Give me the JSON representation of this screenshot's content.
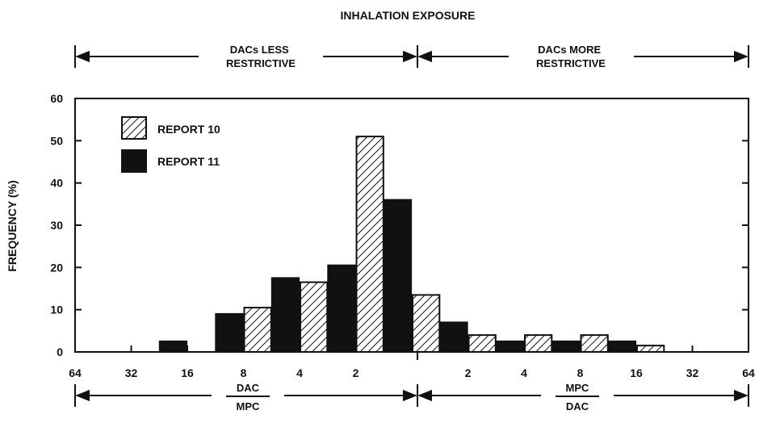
{
  "chart_data": {
    "type": "bar",
    "title": "INHALATION EXPOSURE",
    "ylabel": "FREQUENCY (%)",
    "xlabel": "",
    "ylim": [
      0,
      60
    ],
    "yticks": [
      0,
      10,
      20,
      30,
      40,
      50,
      60
    ],
    "xticks": [
      "64",
      "32",
      "16",
      "8",
      "4",
      "2",
      "2",
      "4",
      "8",
      "16",
      "32",
      "64"
    ],
    "categories": [
      "64-32 (DAC/MPC)",
      "32-16 (DAC/MPC)",
      "16-8 (DAC/MPC)",
      "8-4 (DAC/MPC)",
      "4-2 (DAC/MPC)",
      "2-1 (DAC/MPC)",
      "1-2 (MPC/DAC)",
      "2-4 (MPC/DAC)",
      "4-8 (MPC/DAC)",
      "8-16 (MPC/DAC)",
      "16-32 (MPC/DAC)",
      "32-64 (MPC/DAC)"
    ],
    "series": [
      {
        "name": "REPORT 10",
        "pattern": "hatched",
        "values": [
          0,
          0,
          0,
          10.5,
          16.5,
          51,
          13.5,
          4,
          4,
          4,
          1.5,
          0
        ]
      },
      {
        "name": "REPORT 11",
        "pattern": "solid",
        "values": [
          0,
          2.5,
          9,
          17.5,
          20.5,
          36,
          7,
          2.5,
          2.5,
          2.5,
          0,
          0
        ]
      }
    ],
    "legend_position": "top-left",
    "grid": false,
    "region_labels": {
      "left_top": "DACs LESS RESTRICTIVE",
      "right_top": "DACs MORE RESTRICTIVE",
      "left_bottom_num": "DAC",
      "left_bottom_den": "MPC",
      "right_bottom_num": "MPC",
      "right_bottom_den": "DAC"
    }
  }
}
